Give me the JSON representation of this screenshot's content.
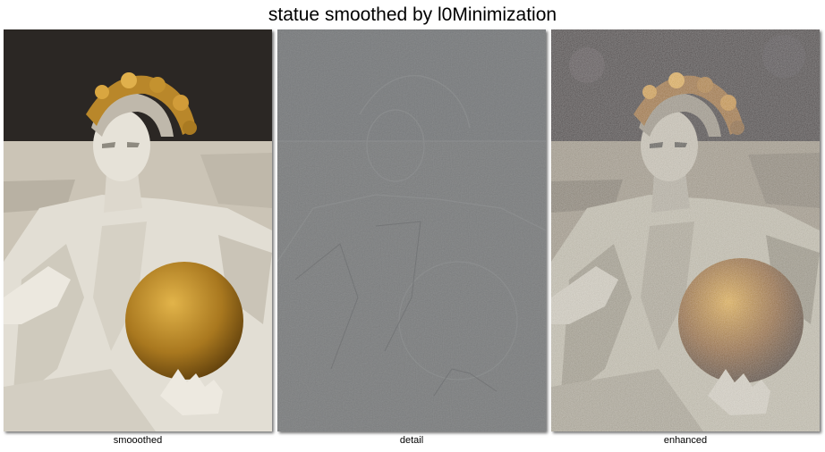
{
  "figure": {
    "title": "statue smoothed by l0Minimization"
  },
  "panels": [
    {
      "caption": "smooothed"
    },
    {
      "caption": "detail"
    },
    {
      "caption": "enhanced"
    }
  ],
  "colors": {
    "stone": "#d9d3c6",
    "gold": "#b8862a",
    "background_dark": "#2a2622",
    "detail_gray": "#7b7d7e"
  }
}
